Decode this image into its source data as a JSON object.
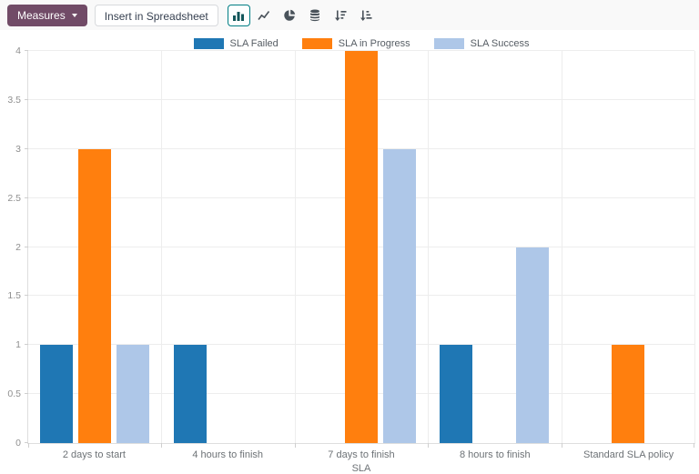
{
  "toolbar": {
    "measures_label": "Measures",
    "insert_label": "Insert in Spreadsheet",
    "chart_type_buttons": [
      {
        "name": "bar-chart",
        "icon": "bar-chart-icon",
        "active": true
      },
      {
        "name": "line-chart",
        "icon": "line-chart-icon",
        "active": false
      },
      {
        "name": "pie-chart",
        "icon": "pie-chart-icon",
        "active": false
      },
      {
        "name": "stacked",
        "icon": "database-icon",
        "active": false
      },
      {
        "name": "descending",
        "icon": "sort-amount-desc-icon",
        "active": false
      },
      {
        "name": "ascending",
        "icon": "sort-amount-asc-icon",
        "active": false
      }
    ]
  },
  "colors": {
    "primary_button_bg": "#714B67",
    "active_button_border": "#017e84",
    "toolbar_bg": "#f9f9f9",
    "series_failed": "#1f77b4",
    "series_in_progress": "#ff7f0e",
    "series_success": "#aec7e8"
  },
  "chart_data": {
    "type": "bar",
    "title": "",
    "xlabel": "SLA",
    "ylabel": "",
    "ylim": [
      0,
      4
    ],
    "ytick_step": 0.5,
    "grid": true,
    "legend_position": "top",
    "categories": [
      "2 days to start",
      "4 hours to finish",
      "7 days to finish",
      "8 hours to finish",
      "Standard SLA policy"
    ],
    "series": [
      {
        "name": "SLA Failed",
        "color": "#1f77b4",
        "values": [
          1,
          1,
          0,
          1,
          0
        ]
      },
      {
        "name": "SLA in Progress",
        "color": "#ff7f0e",
        "values": [
          3,
          0,
          4,
          0,
          1
        ]
      },
      {
        "name": "SLA Success",
        "color": "#aec7e8",
        "values": [
          1,
          0,
          3,
          2,
          0
        ]
      }
    ]
  }
}
